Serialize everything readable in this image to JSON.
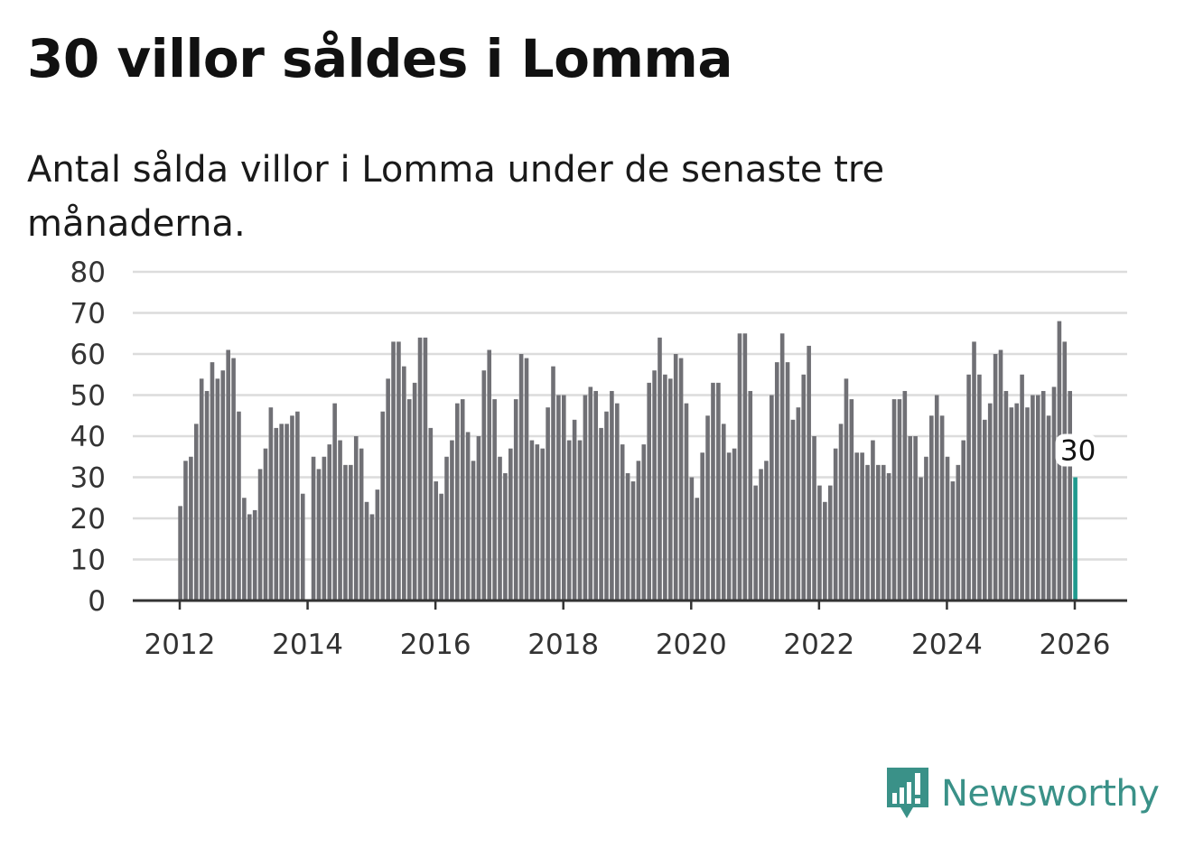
{
  "header": {
    "title": "30 villor såldes i Lomma",
    "subtitle": "Antal sålda villor i Lomma under de senaste tre månaderna."
  },
  "brand": {
    "name": "Newsworthy",
    "icon": "newsworthy-logo-icon",
    "color": "#3a9188"
  },
  "colors": {
    "bar": "#707075",
    "highlight": "#1f9a8e",
    "grid": "#dcdcdc",
    "axis": "#333333"
  },
  "chart_data": {
    "type": "bar",
    "title": "30 villor såldes i Lomma",
    "subtitle": "Antal sålda villor i Lomma under de senaste tre månaderna.",
    "xlabel": "",
    "ylabel": "",
    "ylim": [
      0,
      80
    ],
    "yticks": [
      0,
      10,
      20,
      30,
      40,
      50,
      60,
      70,
      80
    ],
    "xticks": [
      "2012",
      "2014",
      "2016",
      "2018",
      "2020",
      "2022",
      "2024",
      "2026"
    ],
    "start_year": 2012,
    "start_month": 1,
    "grid": true,
    "highlight_label": "30",
    "values": [
      23,
      34,
      35,
      43,
      54,
      51,
      58,
      54,
      56,
      61,
      59,
      46,
      25,
      21,
      22,
      32,
      37,
      47,
      42,
      43,
      43,
      45,
      46,
      26,
      0,
      35,
      32,
      35,
      38,
      48,
      39,
      33,
      33,
      40,
      37,
      24,
      21,
      27,
      46,
      54,
      63,
      63,
      57,
      49,
      53,
      64,
      64,
      42,
      29,
      26,
      35,
      39,
      48,
      49,
      41,
      34,
      40,
      56,
      61,
      49,
      35,
      31,
      37,
      49,
      60,
      59,
      39,
      38,
      37,
      47,
      57,
      50,
      50,
      39,
      44,
      39,
      50,
      52,
      51,
      42,
      46,
      51,
      48,
      38,
      31,
      29,
      34,
      38,
      53,
      56,
      64,
      55,
      54,
      60,
      59,
      48,
      30,
      25,
      36,
      45,
      53,
      53,
      43,
      36,
      37,
      65,
      65,
      51,
      28,
      32,
      34,
      50,
      58,
      65,
      58,
      44,
      47,
      55,
      62,
      40,
      28,
      24,
      28,
      37,
      43,
      54,
      49,
      36,
      36,
      33,
      39,
      33,
      33,
      31,
      49,
      49,
      51,
      40,
      40,
      30,
      35,
      45,
      50,
      45,
      35,
      29,
      33,
      39,
      55,
      63,
      55,
      44,
      48,
      60,
      61,
      51,
      47,
      48,
      55,
      47,
      50,
      50,
      51,
      45,
      52,
      68,
      63,
      51,
      30
    ]
  }
}
